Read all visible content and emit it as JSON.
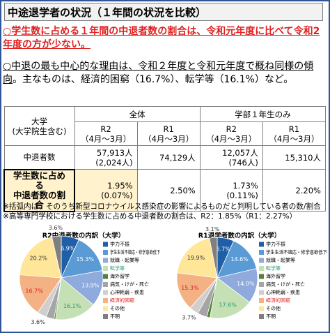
{
  "header": {
    "title": "中途退学者の状況（１年間の状況を比較）"
  },
  "bullets": [
    {
      "text": "○学生数に占める１年間の中退者数の割合は、令和元年度に比べて令和2年度の方が少ない。"
    },
    {
      "underlined": "○中退の最も中心的な理由は、令和２年度と令和元年度で概ね同様の傾向",
      "rest": "。主なものは、経済的困窮（16.7%）、転学等（16.1%）など。"
    }
  ],
  "table": {
    "corner": [
      "大学",
      "(大学院生含む)"
    ],
    "groups": [
      "全体",
      "学部１年生のみ"
    ],
    "periods": [
      [
        "R2",
        "（4月～3月）"
      ],
      [
        "R1",
        "（4月～3月）"
      ],
      [
        "R2",
        "（4月～3月）"
      ],
      [
        "R1",
        "（4月～3月）"
      ]
    ],
    "rows": [
      {
        "label": [
          "中退者数"
        ],
        "cells": [
          [
            "57,913人",
            "(2,024人)"
          ],
          [
            "74,129人"
          ],
          [
            "12,057人",
            "(746人)"
          ],
          [
            "15,310人"
          ]
        ]
      },
      {
        "label": [
          "学生数に占める",
          "中退者数の割合"
        ],
        "cells": [
          [
            "1.95%",
            "(0.07%)"
          ],
          [
            "2.50%"
          ],
          [
            "1.73%",
            "(0.11%)"
          ],
          [
            "2.20%"
          ]
        ]
      }
    ]
  },
  "notes": [
    "※括弧内は、そのうち新型コロナウイルス感染症の影響によるものだと判明している者の数/割合",
    "※高等専門学校における学生数に占める中退者数の割合は、R2：1.85%（R1：2.27%）"
  ],
  "pies": [
    {
      "title": "R2中退者数の内訳（大学）",
      "slices": [
        {
          "name": "学力不振",
          "color": "#1f5fa8",
          "value": 6.9,
          "label": "6.9%"
        },
        {
          "name": "学生生活不適応・修学意欲低下",
          "color": "#5b9bd5",
          "value": 15.3,
          "label": "15.3%"
        },
        {
          "name": "就職・起業等",
          "color": "#8faadc",
          "value": 13.9,
          "label": "13.9%"
        },
        {
          "name": "転学等",
          "color": "#c5e0b4",
          "value": 16.1,
          "label": "16.1%"
        },
        {
          "name": "海外留学",
          "color": "#548235",
          "value": 0.6
        },
        {
          "name": "病気・けが・死亡",
          "color": "#a5a5a5",
          "value": 3.1
        },
        {
          "name": "心神耗弱・疾患",
          "color": "#d0cece",
          "value": 3.6,
          "label": "3.6%"
        },
        {
          "name": "経済的困窮",
          "color": "#f4b183",
          "value": 16.7,
          "label": "16.7%"
        },
        {
          "name": "その他",
          "color": "#ffe699",
          "value": 20.2,
          "label": "20.2%"
        },
        {
          "name": "不明",
          "color": "#7f7f7f",
          "value": 3.6,
          "label": "3.6%"
        }
      ]
    },
    {
      "title": "R1退学者数の内訳（大学）",
      "slices": [
        {
          "name": "学力不振",
          "color": "#1f5fa8",
          "value": 6.7,
          "label": "6.7%"
        },
        {
          "name": "学生生活不適応・修学意欲低下",
          "color": "#5b9bd5",
          "value": 14.6,
          "label": "14.6%"
        },
        {
          "name": "就職・起業等",
          "color": "#8faadc",
          "value": 14.0,
          "label": "14.0%"
        },
        {
          "name": "転学等",
          "color": "#c5e0b4",
          "value": 17.6,
          "label": "17.6%"
        },
        {
          "name": "海外留学",
          "color": "#548235",
          "value": 1.3
        },
        {
          "name": "病気・けが・死亡",
          "color": "#a5a5a5",
          "value": 3.8
        },
        {
          "name": "心神耗弱・疾患",
          "color": "#d0cece",
          "value": 3.7,
          "label": "3.7%"
        },
        {
          "name": "経済的困窮",
          "color": "#f4b183",
          "value": 15.3,
          "label": "15.3%"
        },
        {
          "name": "その他",
          "color": "#ffe699",
          "value": 19.9,
          "label": "19.9%"
        },
        {
          "name": "不明",
          "color": "#7f7f7f",
          "value": 3.1,
          "label": "3.1%"
        }
      ]
    }
  ]
}
